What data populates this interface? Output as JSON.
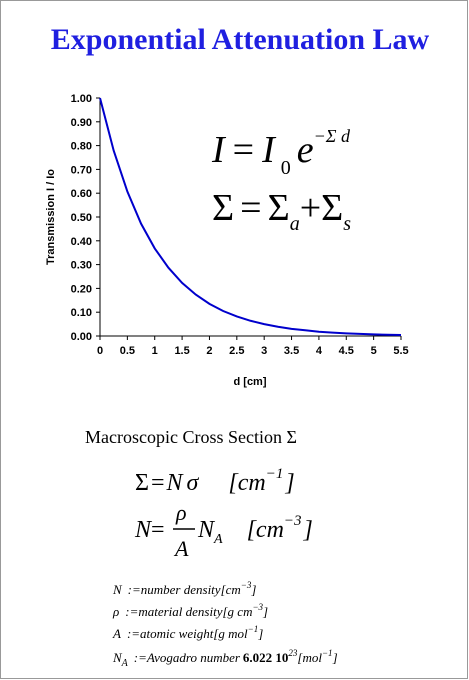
{
  "chart_data": {
    "type": "line",
    "title": "Exponential Attenuation Law",
    "xlabel": "d [cm]",
    "ylabel": "Transmission I / Io",
    "color": "#0000cc",
    "x": [
      0,
      0.25,
      0.5,
      0.75,
      1,
      1.25,
      1.5,
      1.75,
      2,
      2.25,
      2.5,
      2.75,
      3,
      3.25,
      3.5,
      3.75,
      4,
      4.25,
      4.5,
      4.75,
      5,
      5.25,
      5.5
    ],
    "values": [
      1,
      0.779,
      0.607,
      0.472,
      0.368,
      0.287,
      0.223,
      0.174,
      0.135,
      0.105,
      0.082,
      0.064,
      0.05,
      0.039,
      0.03,
      0.024,
      0.018,
      0.014,
      0.011,
      0.009,
      0.007,
      0.005,
      0.004
    ],
    "xlim": [
      0,
      5.5
    ],
    "xticks": [
      0,
      0.5,
      1,
      1.5,
      2,
      2.5,
      3,
      3.5,
      4,
      4.5,
      5,
      5.5
    ],
    "ylim": [
      0,
      1
    ],
    "yticks": [
      {
        "value": 0,
        "label": "0.00"
      },
      {
        "value": 0.1,
        "label": "0.10"
      },
      {
        "value": 0.2,
        "label": "0.20"
      },
      {
        "value": 0.3,
        "label": "0.30"
      },
      {
        "value": 0.4,
        "label": "0.40"
      },
      {
        "value": 0.5,
        "label": "0.50"
      },
      {
        "value": 0.6,
        "label": "0.60"
      },
      {
        "value": 0.7,
        "label": "0.70"
      },
      {
        "value": 0.8,
        "label": "0.80"
      },
      {
        "value": 0.9,
        "label": "0.90"
      },
      {
        "value": 1,
        "label": "1.00"
      }
    ]
  },
  "formulas": {
    "attenuation": [
      "I",
      "=",
      "I",
      "0",
      "e",
      "−Σ d"
    ],
    "total": [
      "Σ",
      "=",
      "Σ",
      "a",
      "+",
      "Σ",
      "s"
    ],
    "heading": "Macroscopic Cross Section Σ",
    "sigma": [
      "Σ",
      "=",
      "N",
      "σ",
      "[cm",
      "−1",
      "]"
    ],
    "density": [
      "N",
      "=",
      "ρ",
      "A",
      "N",
      "A",
      "[cm",
      "−3",
      "]"
    ],
    "definitions": [
      [
        "N",
        ":=number density",
        "[cm",
        "−3",
        "]"
      ],
      [
        "ρ",
        ":=material density",
        "[g cm",
        "−3",
        "]"
      ],
      [
        "A",
        ":=atomic weight",
        "[g mol",
        "−1",
        "]"
      ],
      [
        "N",
        "A",
        ":=Avogadro number",
        "6.022 10",
        "23",
        "[mol",
        "−1",
        "]"
      ]
    ]
  }
}
